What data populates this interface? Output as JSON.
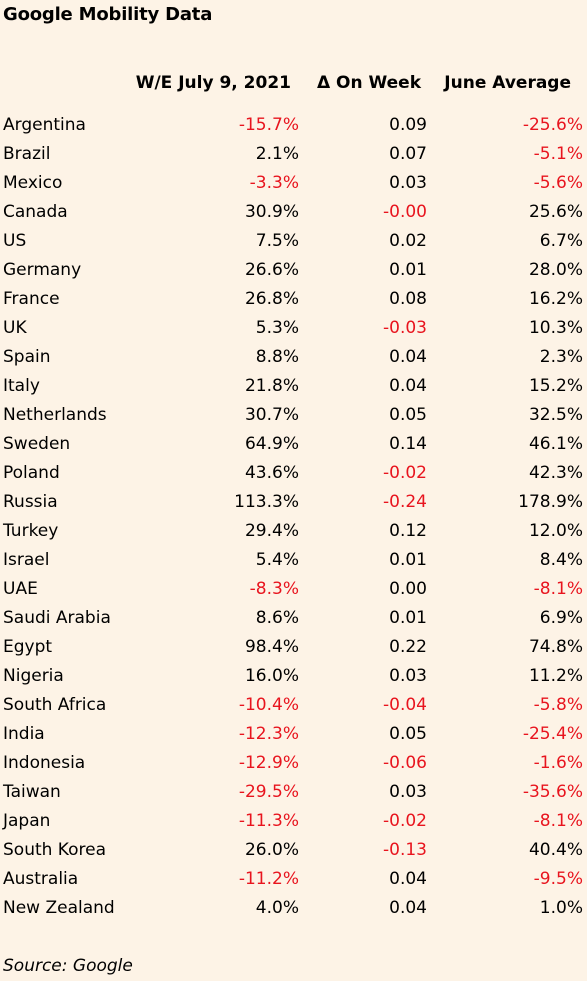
{
  "title": "Google Mobility Data",
  "headers": [
    "W/E July 9, 2021",
    "Δ On Week",
    "June Average"
  ],
  "colors": {
    "negative": "#e8141e",
    "background": "#fdf3e6"
  },
  "rows": [
    {
      "country": "Argentina",
      "week": "-15.7%",
      "change": "0.09",
      "june": "-25.6%"
    },
    {
      "country": "Brazil",
      "week": "2.1%",
      "change": "0.07",
      "june": "-5.1%"
    },
    {
      "country": "Mexico",
      "week": "-3.3%",
      "change": "0.03",
      "june": "-5.6%"
    },
    {
      "country": "Canada",
      "week": "30.9%",
      "change": "-0.00",
      "june": "25.6%"
    },
    {
      "country": "US",
      "week": "7.5%",
      "change": "0.02",
      "june": "6.7%"
    },
    {
      "country": "Germany",
      "week": "26.6%",
      "change": "0.01",
      "june": "28.0%"
    },
    {
      "country": "France",
      "week": "26.8%",
      "change": "0.08",
      "june": "16.2%"
    },
    {
      "country": "UK",
      "week": "5.3%",
      "change": "-0.03",
      "june": "10.3%"
    },
    {
      "country": "Spain",
      "week": "8.8%",
      "change": "0.04",
      "june": "2.3%"
    },
    {
      "country": "Italy",
      "week": "21.8%",
      "change": "0.04",
      "june": "15.2%"
    },
    {
      "country": "Netherlands",
      "week": "30.7%",
      "change": "0.05",
      "june": "32.5%"
    },
    {
      "country": "Sweden",
      "week": "64.9%",
      "change": "0.14",
      "june": "46.1%"
    },
    {
      "country": "Poland",
      "week": "43.6%",
      "change": "-0.02",
      "june": "42.3%"
    },
    {
      "country": "Russia",
      "week": "113.3%",
      "change": "-0.24",
      "june": "178.9%"
    },
    {
      "country": "Turkey",
      "week": "29.4%",
      "change": "0.12",
      "june": "12.0%"
    },
    {
      "country": "Israel",
      "week": "5.4%",
      "change": "0.01",
      "june": "8.4%"
    },
    {
      "country": "UAE",
      "week": "-8.3%",
      "change": "0.00",
      "june": "-8.1%"
    },
    {
      "country": "Saudi Arabia",
      "week": "8.6%",
      "change": "0.01",
      "june": "6.9%"
    },
    {
      "country": "Egypt",
      "week": "98.4%",
      "change": "0.22",
      "june": "74.8%"
    },
    {
      "country": "Nigeria",
      "week": "16.0%",
      "change": "0.03",
      "june": "11.2%"
    },
    {
      "country": "South Africa",
      "week": "-10.4%",
      "change": "-0.04",
      "june": "-5.8%"
    },
    {
      "country": "India",
      "week": "-12.3%",
      "change": "0.05",
      "june": "-25.4%"
    },
    {
      "country": "Indonesia",
      "week": "-12.9%",
      "change": "-0.06",
      "june": "-1.6%"
    },
    {
      "country": "Taiwan",
      "week": "-29.5%",
      "change": "0.03",
      "june": "-35.6%"
    },
    {
      "country": "Japan",
      "week": "-11.3%",
      "change": "-0.02",
      "june": "-8.1%"
    },
    {
      "country": "South Korea",
      "week": "26.0%",
      "change": "-0.13",
      "june": "40.4%"
    },
    {
      "country": "Australia",
      "week": "-11.2%",
      "change": "0.04",
      "june": "-9.5%"
    },
    {
      "country": "New Zealand",
      "week": "4.0%",
      "change": "0.04",
      "june": "1.0%"
    }
  ],
  "source": "Source: Google"
}
